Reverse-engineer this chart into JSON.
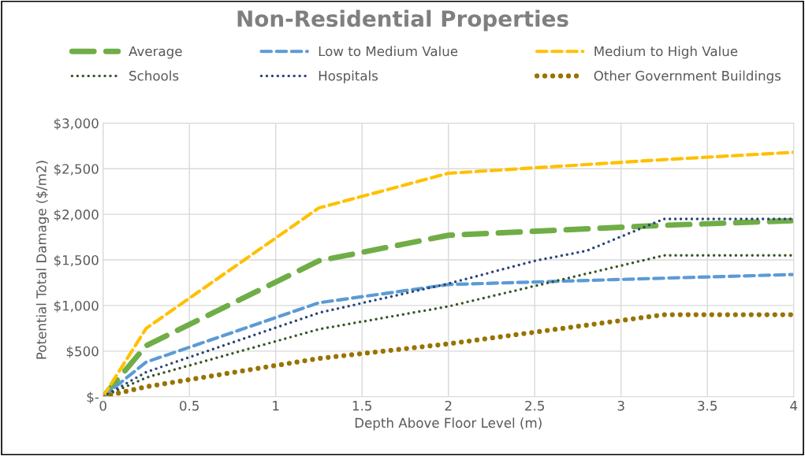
{
  "chart_data": {
    "type": "line",
    "title": "Non-Residential Properties",
    "xlabel": "Depth Above Floor Level (m)",
    "ylabel": "Potential Total Damage ($/m2)",
    "x": [
      0,
      0.25,
      1.25,
      2,
      3.25,
      4
    ],
    "series": [
      {
        "name": "Average",
        "color": "#70ad47",
        "line_style": "dashed",
        "values": [
          0,
          560,
          1490,
          1770,
          1880,
          1930
        ]
      },
      {
        "name": "Low to Medium Value",
        "color": "#5b9bd5",
        "line_style": "dashed",
        "values": [
          0,
          380,
          1030,
          1230,
          1300,
          1340
        ]
      },
      {
        "name": "Medium to High Value",
        "color": "#ffc000",
        "line_style": "dashed",
        "values": [
          0,
          750,
          2070,
          2450,
          2600,
          2680
        ]
      },
      {
        "name": "Schools",
        "color": "#375623",
        "line_style": "dotted",
        "values": [
          0,
          210,
          740,
          990,
          1550,
          1550
        ]
      },
      {
        "name": "Hospitals",
        "color": "#264478",
        "line_style": "dotted",
        "x": [
          0,
          0.25,
          1.25,
          2,
          2.5,
          2.8,
          3.25,
          4
        ],
        "values": [
          0,
          270,
          920,
          1240,
          1490,
          1600,
          1950,
          1950
        ]
      },
      {
        "name": "Other Government Buildings",
        "color": "#997300",
        "line_style": "dotted",
        "values": [
          0,
          110,
          420,
          580,
          900,
          900
        ]
      }
    ],
    "xlim": [
      0,
      4
    ],
    "xticks": [
      0,
      0.5,
      1,
      1.5,
      2,
      2.5,
      3,
      3.5,
      4
    ],
    "ylim": [
      0,
      3000
    ],
    "yticks": [
      {
        "value": 0,
        "label": "$-"
      },
      {
        "value": 500,
        "label": "$500"
      },
      {
        "value": 1000,
        "label": "$1,000"
      },
      {
        "value": 1500,
        "label": "$1,500"
      },
      {
        "value": 2000,
        "label": "$2,000"
      },
      {
        "value": 2500,
        "label": "$2,500"
      },
      {
        "value": 3000,
        "label": "$3,000"
      }
    ],
    "grid": true,
    "legend": "top",
    "marker": "none"
  }
}
